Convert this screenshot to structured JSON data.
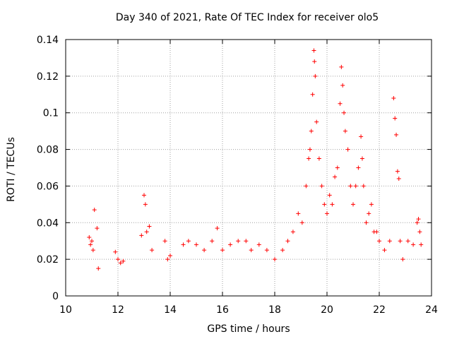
{
  "chart_data": {
    "type": "scatter",
    "title": "Day 340 of 2021, Rate Of TEC Index for receiver olo5",
    "xlabel": "GPS time / hours",
    "ylabel": "ROTI / TECUs",
    "xlim": [
      10,
      24
    ],
    "ylim": [
      0,
      0.14
    ],
    "x_ticks": [
      10,
      12,
      14,
      16,
      18,
      20,
      22,
      24
    ],
    "x_tick_labels": [
      "10",
      "12",
      "14",
      "16",
      "18",
      "20",
      "22",
      "24"
    ],
    "y_ticks": [
      0,
      0.02,
      0.04,
      0.06,
      0.08,
      0.1,
      0.12,
      0.14
    ],
    "y_tick_labels": [
      "0",
      "0.02",
      "0.04",
      "0.06",
      "0.08",
      "0.1",
      "0.12",
      "0.14"
    ],
    "grid": true,
    "marker": "plus",
    "color": "#ff0000",
    "series": [
      {
        "name": "ROTI",
        "points": [
          [
            10.9,
            0.032
          ],
          [
            10.95,
            0.028
          ],
          [
            11.0,
            0.03
          ],
          [
            11.05,
            0.025
          ],
          [
            11.1,
            0.047
          ],
          [
            11.2,
            0.037
          ],
          [
            11.25,
            0.015
          ],
          [
            11.9,
            0.024
          ],
          [
            12.0,
            0.02
          ],
          [
            12.1,
            0.018
          ],
          [
            12.2,
            0.019
          ],
          [
            12.9,
            0.033
          ],
          [
            13.0,
            0.055
          ],
          [
            13.05,
            0.05
          ],
          [
            13.1,
            0.035
          ],
          [
            13.2,
            0.038
          ],
          [
            13.3,
            0.025
          ],
          [
            13.8,
            0.03
          ],
          [
            13.9,
            0.02
          ],
          [
            14.0,
            0.022
          ],
          [
            14.5,
            0.028
          ],
          [
            14.7,
            0.03
          ],
          [
            15.0,
            0.028
          ],
          [
            15.3,
            0.025
          ],
          [
            15.6,
            0.03
          ],
          [
            15.8,
            0.037
          ],
          [
            16.0,
            0.025
          ],
          [
            16.3,
            0.028
          ],
          [
            16.6,
            0.03
          ],
          [
            16.9,
            0.03
          ],
          [
            17.1,
            0.025
          ],
          [
            17.4,
            0.028
          ],
          [
            17.7,
            0.025
          ],
          [
            18.0,
            0.02
          ],
          [
            18.3,
            0.025
          ],
          [
            18.5,
            0.03
          ],
          [
            18.7,
            0.035
          ],
          [
            18.9,
            0.045
          ],
          [
            19.05,
            0.04
          ],
          [
            19.2,
            0.06
          ],
          [
            19.3,
            0.075
          ],
          [
            19.35,
            0.08
          ],
          [
            19.4,
            0.09
          ],
          [
            19.45,
            0.11
          ],
          [
            19.5,
            0.134
          ],
          [
            19.52,
            0.128
          ],
          [
            19.55,
            0.12
          ],
          [
            19.6,
            0.095
          ],
          [
            19.7,
            0.075
          ],
          [
            19.8,
            0.06
          ],
          [
            19.9,
            0.05
          ],
          [
            20.0,
            0.045
          ],
          [
            20.1,
            0.055
          ],
          [
            20.2,
            0.05
          ],
          [
            20.3,
            0.065
          ],
          [
            20.4,
            0.07
          ],
          [
            20.5,
            0.105
          ],
          [
            20.55,
            0.125
          ],
          [
            20.6,
            0.115
          ],
          [
            20.65,
            0.1
          ],
          [
            20.7,
            0.09
          ],
          [
            20.8,
            0.08
          ],
          [
            20.9,
            0.06
          ],
          [
            21.0,
            0.05
          ],
          [
            21.1,
            0.06
          ],
          [
            21.2,
            0.07
          ],
          [
            21.3,
            0.087
          ],
          [
            21.35,
            0.075
          ],
          [
            21.4,
            0.06
          ],
          [
            21.5,
            0.04
          ],
          [
            21.6,
            0.045
          ],
          [
            21.7,
            0.05
          ],
          [
            21.8,
            0.035
          ],
          [
            21.9,
            0.035
          ],
          [
            22.0,
            0.03
          ],
          [
            22.2,
            0.025
          ],
          [
            22.4,
            0.03
          ],
          [
            22.55,
            0.108
          ],
          [
            22.6,
            0.097
          ],
          [
            22.65,
            0.088
          ],
          [
            22.7,
            0.068
          ],
          [
            22.75,
            0.064
          ],
          [
            22.8,
            0.03
          ],
          [
            22.9,
            0.02
          ],
          [
            23.1,
            0.03
          ],
          [
            23.3,
            0.028
          ],
          [
            23.45,
            0.04
          ],
          [
            23.5,
            0.042
          ],
          [
            23.55,
            0.035
          ],
          [
            23.6,
            0.028
          ]
        ]
      }
    ]
  }
}
